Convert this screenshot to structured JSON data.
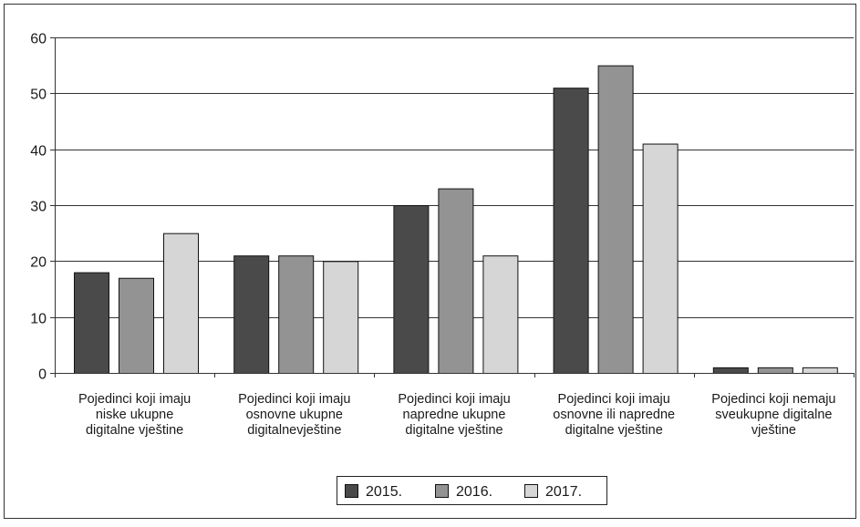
{
  "chart_data": {
    "type": "bar",
    "categories": [
      [
        "Pojedinci koji imaju",
        "niske ukupne",
        "digitalne vještine"
      ],
      [
        "Pojedinci koji imaju",
        "osnovne ukupne",
        "digitalnevještine"
      ],
      [
        "Pojedinci koji imaju",
        "napredne ukupne",
        "digitalne vještine"
      ],
      [
        "Pojedinci koji imaju",
        "osnovne ili napredne",
        "digitalne vještine"
      ],
      [
        "Pojedinci koji nemaju",
        "sveukupne digitalne",
        "vještine"
      ]
    ],
    "series": [
      {
        "name": "2015.",
        "color": "#4a4a4a",
        "values": [
          18,
          21,
          30,
          51,
          1
        ]
      },
      {
        "name": "2016.",
        "color": "#939393",
        "values": [
          17,
          21,
          33,
          55,
          1
        ]
      },
      {
        "name": "2017.",
        "color": "#d6d6d6",
        "values": [
          25,
          20,
          21,
          41,
          1
        ]
      }
    ],
    "yticks": [
      0,
      10,
      20,
      30,
      40,
      50,
      60
    ],
    "ylim": [
      0,
      60
    ],
    "title": "",
    "xlabel": "",
    "ylabel": "",
    "grid": true,
    "legend_position": "bottom-center"
  }
}
